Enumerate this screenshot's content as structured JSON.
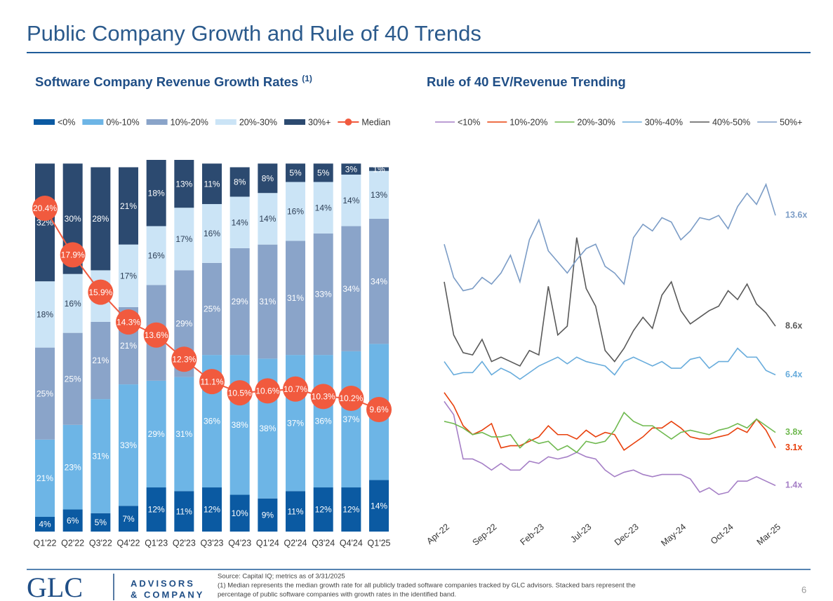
{
  "slide_title": "Public Company Growth and Rule of 40 Trends",
  "chart_data": [
    {
      "type": "stacked_bar_line",
      "title": "Software Company Revenue Growth Rates",
      "title_note": "(1)",
      "categories": [
        "Q1'22",
        "Q2'22",
        "Q3'22",
        "Q4'22",
        "Q1'23",
        "Q2'23",
        "Q3'23",
        "Q4'23",
        "Q1'24",
        "Q2'24",
        "Q3'24",
        "Q4'24",
        "Q1'25"
      ],
      "series": [
        {
          "name": "<0%",
          "color": "#0b5aa2",
          "label_color": "#ffffff",
          "values": [
            4,
            6,
            5,
            7,
            12,
            11,
            12,
            10,
            9,
            11,
            12,
            12,
            14
          ],
          "value_labels": [
            "4%",
            "6%",
            "5%",
            "7%",
            "12%",
            "11%",
            "12%",
            "10%",
            "9%",
            "11%",
            "12%",
            "12%",
            "14%"
          ]
        },
        {
          "name": "0%-10%",
          "color": "#6db5e6",
          "label_color": "#ffffff",
          "values": [
            21,
            23,
            31,
            33,
            29,
            31,
            36,
            38,
            38,
            37,
            36,
            37,
            37
          ],
          "value_labels": [
            "21%",
            "23%",
            "31%",
            "33%",
            "29%",
            "31%",
            "36%",
            "38%",
            "38%",
            "37%",
            "36%",
            "37%",
            "37%"
          ]
        },
        {
          "name": "10%-20%",
          "color": "#8aa4c9",
          "label_color": "#ffffff",
          "values": [
            25,
            25,
            21,
            21,
            26,
            29,
            25,
            29,
            31,
            31,
            33,
            34,
            34
          ],
          "value_labels": [
            "25%",
            "25%",
            "21%",
            "21%",
            "26%",
            "29%",
            "25%",
            "29%",
            "31%",
            "31%",
            "33%",
            "34%",
            "34%"
          ]
        },
        {
          "name": "20%-30%",
          "color": "#cbe4f6",
          "label_color": "#2d3e55",
          "values": [
            18,
            16,
            14,
            17,
            16,
            17,
            16,
            14,
            14,
            16,
            14,
            14,
            13
          ],
          "value_labels": [
            "18%",
            "16%",
            "14%",
            "17%",
            "16%",
            "17%",
            "16%",
            "14%",
            "14%",
            "16%",
            "14%",
            "14%",
            "13%"
          ]
        },
        {
          "name": "30%+",
          "color": "#2c4a70",
          "label_color": "#ffffff",
          "values": [
            32,
            30,
            28,
            21,
            18,
            13,
            11,
            8,
            8,
            5,
            5,
            3,
            1
          ],
          "value_labels": [
            "32%",
            "30%",
            "28%",
            "21%",
            "18%",
            "13%",
            "11%",
            "8%",
            "8%",
            "5%",
            "5%",
            "3%",
            "1%"
          ]
        },
        {
          "name": "Median",
          "color": "#f15a3e",
          "axis": "y2",
          "type": "line",
          "values": [
            20.4,
            17.9,
            15.9,
            14.3,
            13.6,
            12.3,
            11.1,
            10.5,
            10.6,
            10.7,
            10.3,
            10.2,
            9.6
          ],
          "value_labels": [
            "20.4%",
            "17.9%",
            "15.9%",
            "14.3%",
            "13.6%",
            "12.3%",
            "11.1%",
            "10.5%",
            "10.6%",
            "10.7%",
            "10.3%",
            "10.2%",
            "9.6%"
          ]
        }
      ]
    },
    {
      "type": "line",
      "title": "Rule of 40 EV/Revenue Trending",
      "categories": [
        "Apr-22",
        null,
        null,
        null,
        null,
        "Sep-22",
        null,
        null,
        null,
        null,
        "Feb-23",
        null,
        null,
        null,
        null,
        "Jul-23",
        null,
        null,
        null,
        null,
        "Dec-23",
        null,
        null,
        null,
        null,
        "May-24",
        null,
        null,
        null,
        null,
        "Oct-24",
        null,
        null,
        null,
        null,
        "Mar-25"
      ],
      "series": [
        {
          "name": "<10%",
          "color": "#a57fc6",
          "values": [
            5.2,
            4.6,
            2.6,
            2.6,
            2.4,
            2.1,
            2.4,
            2.1,
            2.1,
            2.5,
            2.4,
            2.7,
            2.6,
            2.7,
            2.9,
            2.7,
            2.6,
            2.1,
            1.8,
            2.0,
            2.1,
            1.9,
            1.8,
            1.9,
            1.9,
            1.9,
            1.7,
            1.1,
            1.3,
            1.0,
            1.1,
            1.6,
            1.6,
            1.8,
            1.6,
            1.4
          ],
          "value_labels": [
            null,
            null,
            null,
            null,
            null,
            null,
            null,
            null,
            null,
            null,
            null,
            null,
            null,
            null,
            null,
            null,
            null,
            null,
            null,
            null,
            null,
            null,
            null,
            null,
            null,
            null,
            null,
            null,
            null,
            null,
            null,
            null,
            null,
            null,
            null,
            "1.4x"
          ]
        },
        {
          "name": "10%-20%",
          "color": "#e8400c",
          "values": [
            5.6,
            5.0,
            4.1,
            3.7,
            3.9,
            4.2,
            3.1,
            3.2,
            3.2,
            3.4,
            3.6,
            4.1,
            3.7,
            3.7,
            3.5,
            3.9,
            3.6,
            3.8,
            3.7,
            3.0,
            3.3,
            3.6,
            4.0,
            4.0,
            4.3,
            4.0,
            3.6,
            3.5,
            3.5,
            3.6,
            3.7,
            4.0,
            3.8,
            4.4,
            3.9,
            3.1
          ],
          "value_labels": [
            null,
            null,
            null,
            null,
            null,
            null,
            null,
            null,
            null,
            null,
            null,
            null,
            null,
            null,
            null,
            null,
            null,
            null,
            null,
            null,
            null,
            null,
            null,
            null,
            null,
            null,
            null,
            null,
            null,
            null,
            null,
            null,
            null,
            null,
            null,
            "3.1x"
          ]
        },
        {
          "name": "20%-30%",
          "color": "#6fb94f",
          "values": [
            4.3,
            4.2,
            4.0,
            3.7,
            3.8,
            3.6,
            3.6,
            3.7,
            3.1,
            3.5,
            3.3,
            3.4,
            3.0,
            3.2,
            2.9,
            3.4,
            3.3,
            3.4,
            3.9,
            4.7,
            4.3,
            4.1,
            4.1,
            3.8,
            3.5,
            3.8,
            3.9,
            3.8,
            3.7,
            3.9,
            4.0,
            4.2,
            4.0,
            4.4,
            4.1,
            3.8
          ],
          "value_labels": [
            null,
            null,
            null,
            null,
            null,
            null,
            null,
            null,
            null,
            null,
            null,
            null,
            null,
            null,
            null,
            null,
            null,
            null,
            null,
            null,
            null,
            null,
            null,
            null,
            null,
            null,
            null,
            null,
            null,
            null,
            null,
            null,
            null,
            null,
            null,
            "3.8x"
          ]
        },
        {
          "name": "30%-40%",
          "color": "#68acdc",
          "values": [
            7.0,
            6.4,
            6.5,
            6.5,
            7.0,
            6.4,
            6.7,
            6.5,
            6.2,
            6.5,
            6.8,
            7.0,
            7.2,
            6.9,
            7.2,
            7.0,
            6.9,
            6.8,
            6.4,
            7.0,
            7.2,
            7.0,
            6.8,
            7.0,
            6.7,
            6.7,
            7.1,
            7.2,
            6.7,
            7.0,
            7.0,
            7.6,
            7.2,
            7.2,
            6.6,
            6.4
          ],
          "value_labels": [
            null,
            null,
            null,
            null,
            null,
            null,
            null,
            null,
            null,
            null,
            null,
            null,
            null,
            null,
            null,
            null,
            null,
            null,
            null,
            null,
            null,
            null,
            null,
            null,
            null,
            null,
            null,
            null,
            null,
            null,
            null,
            null,
            null,
            null,
            null,
            "6.4x"
          ]
        },
        {
          "name": "40%-50%",
          "color": "#595959",
          "values": [
            10.6,
            8.2,
            7.4,
            7.3,
            8.0,
            7.0,
            7.2,
            7.0,
            6.8,
            7.5,
            7.3,
            10.4,
            8.2,
            8.6,
            12.6,
            10.3,
            9.5,
            7.5,
            7.0,
            7.6,
            8.4,
            9.0,
            8.5,
            10.0,
            10.6,
            9.3,
            8.7,
            9.0,
            9.3,
            9.5,
            10.2,
            9.8,
            10.5,
            9.6,
            9.2,
            8.6
          ],
          "value_labels": [
            null,
            null,
            null,
            null,
            null,
            null,
            null,
            null,
            null,
            null,
            null,
            null,
            null,
            null,
            null,
            null,
            null,
            null,
            null,
            null,
            null,
            null,
            null,
            null,
            null,
            null,
            null,
            null,
            null,
            null,
            null,
            null,
            null,
            null,
            null,
            "8.6x"
          ]
        },
        {
          "name": "50%+",
          "color": "#7b9cc6",
          "values": [
            12.3,
            10.8,
            10.2,
            10.3,
            10.8,
            10.5,
            11.0,
            11.8,
            10.6,
            12.5,
            13.4,
            12.0,
            11.5,
            11.0,
            11.6,
            12.1,
            12.3,
            11.3,
            11.0,
            10.5,
            12.6,
            13.2,
            12.9,
            13.5,
            13.3,
            12.5,
            12.9,
            13.5,
            13.4,
            13.6,
            13.0,
            14.0,
            14.6,
            14.1,
            15.0,
            13.6
          ],
          "value_labels": [
            null,
            null,
            null,
            null,
            null,
            null,
            null,
            null,
            null,
            null,
            null,
            null,
            null,
            null,
            null,
            null,
            null,
            null,
            null,
            null,
            null,
            null,
            null,
            null,
            null,
            null,
            null,
            null,
            null,
            null,
            null,
            null,
            null,
            null,
            null,
            "13.6x"
          ]
        }
      ]
    }
  ],
  "footer": {
    "source": "Source: Capital IQ; metrics as of 3/31/2025",
    "note_lines": [
      "(1) Median represents the median growth rate for all publicly traded software companies tracked by GLC advisors. Stacked bars represent the",
      "percentage of public software companies with growth rates in the identified band."
    ]
  },
  "logo": {
    "mark": "GLC",
    "line1": "ADVISORS",
    "line2": "& COMPANY"
  },
  "page_number": "6"
}
